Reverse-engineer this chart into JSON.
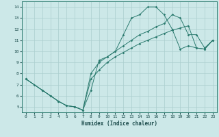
{
  "xlabel": "Humidex (Indice chaleur)",
  "bg_color": "#cce8e8",
  "line_color": "#2a7a6e",
  "grid_color": "#aacece",
  "xlim": [
    -0.5,
    23.5
  ],
  "ylim": [
    4.5,
    14.5
  ],
  "xticks": [
    0,
    1,
    2,
    3,
    4,
    5,
    6,
    7,
    8,
    9,
    10,
    11,
    12,
    13,
    14,
    15,
    16,
    17,
    18,
    19,
    20,
    21,
    22,
    23
  ],
  "yticks": [
    5,
    6,
    7,
    8,
    9,
    10,
    11,
    12,
    13,
    14
  ],
  "series1_x": [
    0,
    1,
    2,
    3,
    4,
    5,
    6,
    7,
    8,
    9,
    10,
    11,
    12,
    13,
    14,
    15,
    16,
    17,
    18,
    19,
    20,
    21,
    22,
    23
  ],
  "series1_y": [
    7.5,
    7.0,
    6.5,
    6.0,
    5.5,
    5.1,
    5.0,
    4.7,
    6.5,
    9.2,
    9.5,
    10.0,
    11.5,
    13.0,
    13.3,
    14.0,
    14.0,
    13.3,
    12.0,
    10.2,
    10.5,
    10.3,
    10.2,
    11.0
  ],
  "series2_x": [
    0,
    2,
    3,
    4,
    5,
    6,
    7,
    8,
    9,
    10,
    11,
    12,
    13,
    14,
    15,
    16,
    17,
    18,
    19,
    20,
    21,
    22,
    23
  ],
  "series2_y": [
    7.5,
    6.5,
    6.0,
    5.5,
    5.1,
    5.0,
    4.7,
    8.0,
    9.0,
    9.5,
    10.0,
    10.5,
    11.0,
    11.5,
    11.8,
    12.2,
    12.5,
    13.3,
    13.0,
    11.5,
    11.5,
    10.3,
    11.0
  ],
  "series3_x": [
    0,
    2,
    3,
    4,
    5,
    6,
    7,
    8,
    9,
    10,
    11,
    12,
    13,
    14,
    15,
    16,
    17,
    18,
    19,
    20,
    21,
    22,
    23
  ],
  "series3_y": [
    7.5,
    6.5,
    6.0,
    5.5,
    5.1,
    5.0,
    4.7,
    7.5,
    8.3,
    9.0,
    9.5,
    9.9,
    10.3,
    10.7,
    11.0,
    11.3,
    11.6,
    11.9,
    12.1,
    12.3,
    10.3,
    10.2,
    11.0
  ]
}
